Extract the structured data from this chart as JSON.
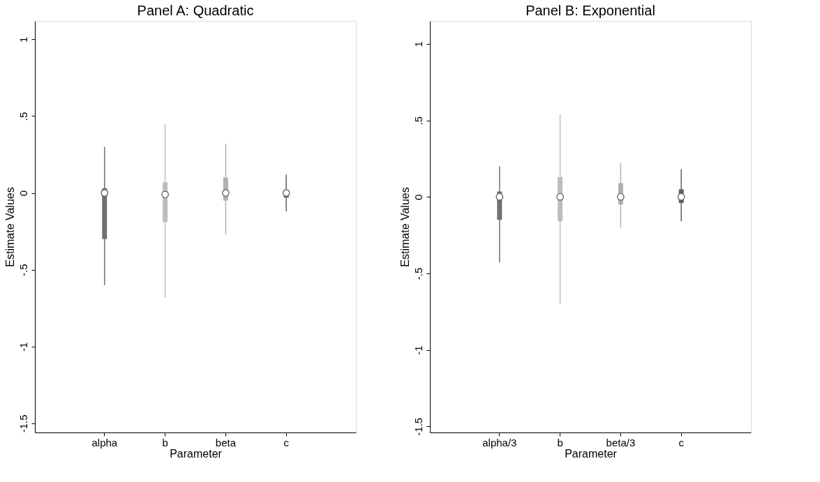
{
  "chart_data": [
    {
      "type": "box",
      "title": "Panel A: Quadratic",
      "xlabel": "Parameter",
      "ylabel": "Estimate Values",
      "categories": [
        "alpha",
        "b",
        "beta",
        "c"
      ],
      "colors": [
        "#707070",
        "#bdbdbd",
        "#b0b0b0",
        "#5e5e5e"
      ],
      "boxes": [
        {
          "low": -0.6,
          "q1": -0.3,
          "median": 0.0,
          "q3": 0.03,
          "high": 0.3
        },
        {
          "low": -0.68,
          "q1": -0.19,
          "median": -0.01,
          "q3": 0.07,
          "high": 0.45
        },
        {
          "low": -0.27,
          "q1": -0.05,
          "median": 0.0,
          "q3": 0.1,
          "high": 0.32
        },
        {
          "low": -0.12,
          "q1": -0.03,
          "median": 0.0,
          "q3": 0.02,
          "high": 0.12
        }
      ],
      "ylim": [
        -1.56,
        1.12
      ],
      "yticks": [
        {
          "value": -1.5,
          "label": "-1.5"
        },
        {
          "value": -1,
          "label": "-1"
        },
        {
          "value": -0.5,
          "label": "-.5"
        },
        {
          "value": 0,
          "label": "0"
        },
        {
          "value": 0.5,
          "label": ".5"
        },
        {
          "value": 1,
          "label": "1"
        }
      ],
      "grid": false
    },
    {
      "type": "box",
      "title": "Panel B: Exponential",
      "xlabel": "Parameter",
      "ylabel": "Estimate Values",
      "categories": [
        "alpha/3",
        "b",
        "beta/3",
        "c"
      ],
      "colors": [
        "#707070",
        "#bdbdbd",
        "#b0b0b0",
        "#5e5e5e"
      ],
      "boxes": [
        {
          "low": -0.43,
          "q1": -0.15,
          "median": 0.0,
          "q3": 0.035,
          "high": 0.2
        },
        {
          "low": -0.7,
          "q1": -0.16,
          "median": 0.0,
          "q3": 0.13,
          "high": 0.54
        },
        {
          "low": -0.2,
          "q1": -0.05,
          "median": 0.0,
          "q3": 0.09,
          "high": 0.22
        },
        {
          "low": -0.16,
          "q1": -0.04,
          "median": 0.0,
          "q3": 0.05,
          "high": 0.18
        }
      ],
      "ylim": [
        -1.54,
        1.15
      ],
      "yticks": [
        {
          "value": -1.5,
          "label": "-1.5"
        },
        {
          "value": -1,
          "label": "-1"
        },
        {
          "value": -0.5,
          "label": "-.5"
        },
        {
          "value": 0,
          "label": "0"
        },
        {
          "value": 0.5,
          "label": ".5"
        },
        {
          "value": 1,
          "label": "1"
        }
      ],
      "grid": false
    }
  ]
}
